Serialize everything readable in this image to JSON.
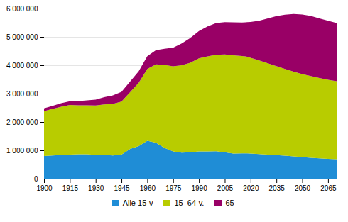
{
  "chart_data": {
    "type": "area",
    "stacked": true,
    "grid": true,
    "legend": "bottom",
    "x": [
      1900,
      1905,
      1910,
      1915,
      1920,
      1925,
      1930,
      1935,
      1940,
      1945,
      1950,
      1955,
      1960,
      1965,
      1970,
      1975,
      1980,
      1985,
      1990,
      1995,
      2000,
      2005,
      2010,
      2015,
      2017,
      2018,
      2020,
      2025,
      2030,
      2035,
      2040,
      2045,
      2050,
      2055,
      2060,
      2065,
      2070
    ],
    "series": [
      {
        "name": "Alle 15-v",
        "color": "#1f8dd6",
        "values": [
          800000,
          820000,
          840000,
          850000,
          860000,
          860000,
          840000,
          840000,
          820000,
          850000,
          1050000,
          1150000,
          1340000,
          1270000,
          1090000,
          960000,
          920000,
          930000,
          965000,
          960000,
          970000,
          930000,
          890000,
          895000,
          895000,
          893000,
          890000,
          870000,
          850000,
          830000,
          810000,
          785000,
          760000,
          740000,
          720000,
          700000,
          685000
        ]
      },
      {
        "name": "15–64-v.",
        "color": "#b8cc00",
        "values": [
          1580000,
          1640000,
          1700000,
          1750000,
          1730000,
          1730000,
          1740000,
          1780000,
          1820000,
          1870000,
          2000000,
          2230000,
          2530000,
          2760000,
          2920000,
          3000000,
          3080000,
          3160000,
          3280000,
          3350000,
          3400000,
          3450000,
          3460000,
          3430000,
          3420000,
          3405000,
          3375000,
          3300000,
          3220000,
          3140000,
          3060000,
          2990000,
          2930000,
          2880000,
          2830000,
          2790000,
          2750000
        ]
      },
      {
        "name": "65-",
        "color": "#990066",
        "values": [
          100000,
          110000,
          120000,
          130000,
          150000,
          175000,
          210000,
          255000,
          300000,
          340000,
          375000,
          405000,
          450000,
          500000,
          570000,
          660000,
          770000,
          870000,
          960000,
          1060000,
          1120000,
          1140000,
          1160000,
          1180000,
          1200000,
          1220000,
          1260000,
          1400000,
          1580000,
          1760000,
          1910000,
          2030000,
          2100000,
          2120000,
          2100000,
          2080000,
          2050000
        ]
      }
    ],
    "xlim": [
      1900,
      2070
    ],
    "xticks": [
      1900,
      1915,
      1930,
      1945,
      1960,
      1975,
      1990,
      2005,
      2020,
      2035,
      2050,
      2065
    ],
    "ylim": [
      0,
      6000000
    ],
    "yticks": [
      0,
      {
        "value": 1000000,
        "label": "1 000 000"
      },
      {
        "value": 2000000,
        "label": "2 000 000"
      },
      {
        "value": 3000000,
        "label": "3 000 000"
      },
      {
        "value": 4000000,
        "label": "4 000 000"
      },
      {
        "value": 5000000,
        "label": "5 000 000"
      },
      {
        "value": 6000000,
        "label": "6 000 000"
      }
    ]
  }
}
